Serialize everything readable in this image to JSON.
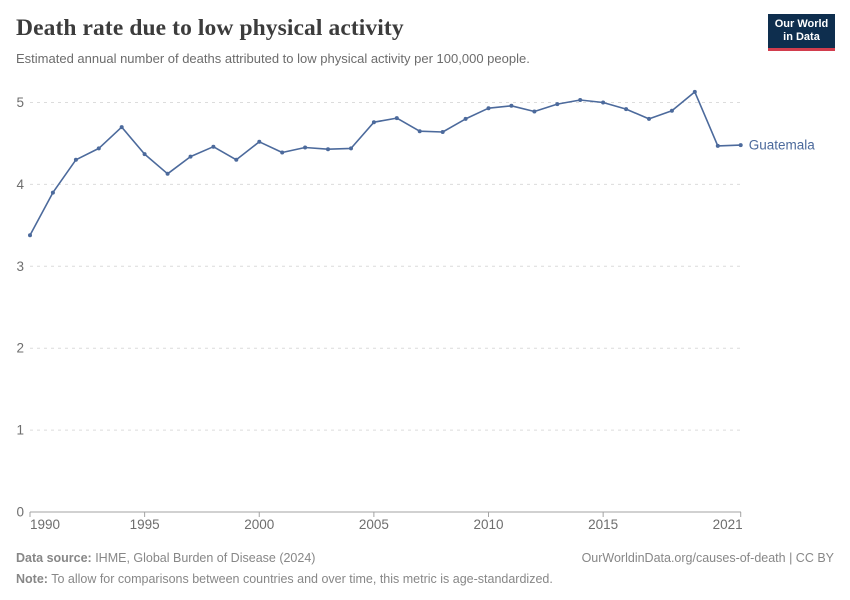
{
  "header": {
    "title": "Death rate due to low physical activity",
    "subtitle": "Estimated annual number of deaths attributed to low physical activity per 100,000 people.",
    "logo_line1": "Our World",
    "logo_line2": "in Data"
  },
  "chart_data": {
    "type": "line",
    "title": "Death rate due to low physical activity",
    "x": [
      1990,
      1991,
      1992,
      1993,
      1994,
      1995,
      1996,
      1997,
      1998,
      1999,
      2000,
      2001,
      2002,
      2003,
      2004,
      2005,
      2006,
      2007,
      2008,
      2009,
      2010,
      2011,
      2012,
      2013,
      2014,
      2015,
      2016,
      2017,
      2018,
      2019,
      2020,
      2021
    ],
    "series": [
      {
        "name": "Guatemala",
        "values": [
          3.38,
          3.9,
          4.3,
          4.44,
          4.7,
          4.37,
          4.13,
          4.34,
          4.46,
          4.3,
          4.52,
          4.39,
          4.45,
          4.43,
          4.44,
          4.76,
          4.81,
          4.65,
          4.64,
          4.8,
          4.93,
          4.96,
          4.89,
          4.98,
          5.03,
          5.0,
          4.92,
          4.8,
          4.9,
          5.13,
          4.47,
          4.48
        ]
      }
    ],
    "xlabel": "",
    "ylabel": "",
    "ylim": [
      0,
      5
    ],
    "yticks": [
      0,
      1,
      2,
      3,
      4,
      5
    ],
    "xticks": [
      1990,
      1995,
      2000,
      2005,
      2010,
      2015,
      2021
    ],
    "grid": "horizontal-dashed",
    "legend_position": "end-of-line-label",
    "end_label": "Guatemala"
  },
  "colors": {
    "line": "#4c6a9c",
    "grid": "#dcdcdc",
    "axis": "#a3a3a3",
    "tick_label": "#6e6e6e",
    "logo_bg": "#0e2e4e",
    "logo_bar": "#d23d4d"
  },
  "footer": {
    "data_source_label": "Data source:",
    "data_source_text": " IHME, Global Burden of Disease (2024)",
    "attribution": "OurWorldinData.org/causes-of-death | CC BY",
    "note_label": "Note:",
    "note_text": " To allow for comparisons between countries and over time, this metric is age-standardized."
  }
}
